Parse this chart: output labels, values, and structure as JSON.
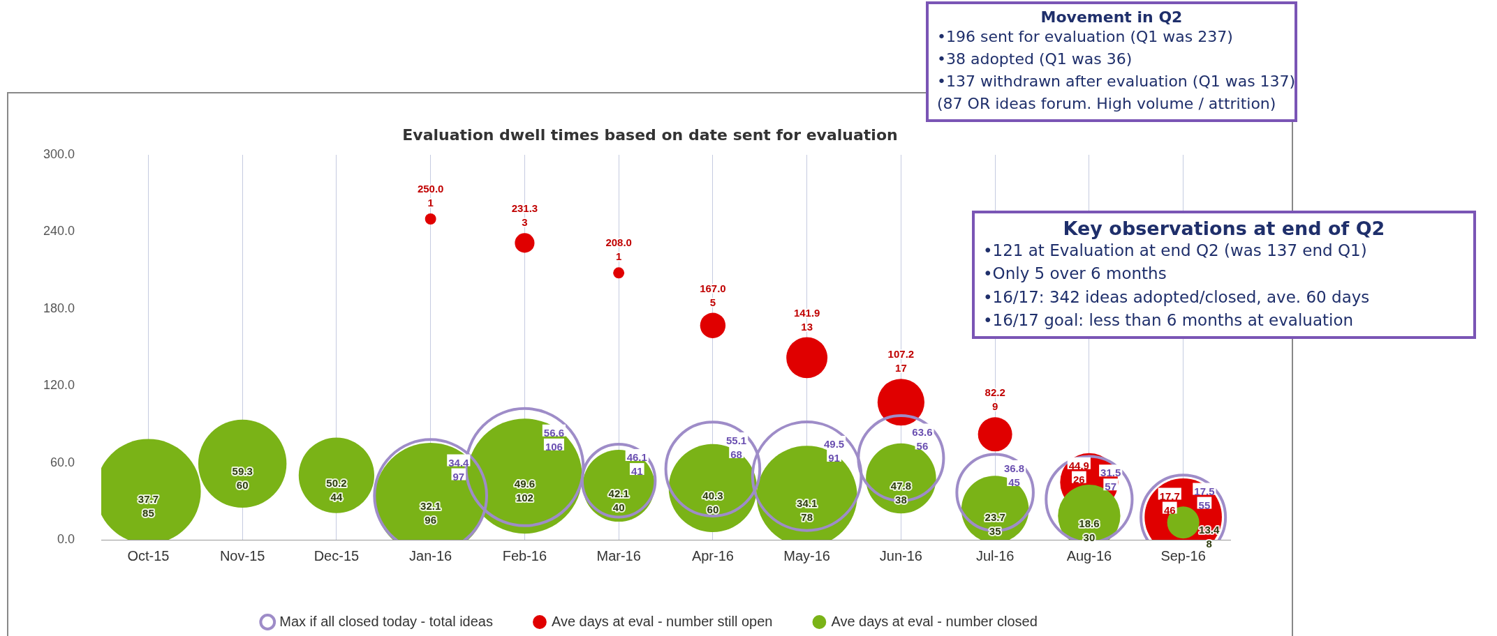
{
  "chart_data": {
    "type": "bubble",
    "title": "Evaluation dwell times based on date sent for evaluation",
    "categories": [
      "Oct-15",
      "Nov-15",
      "Dec-15",
      "Jan-16",
      "Feb-16",
      "Mar-16",
      "Apr-16",
      "May-16",
      "Jun-16",
      "Jul-16",
      "Aug-16",
      "Sep-16"
    ],
    "series": [
      {
        "name": "Max if all closed today - total ideas",
        "color": "#9e8cc8",
        "values": [
          null,
          null,
          null,
          34.4,
          56.6,
          46.1,
          55.1,
          49.5,
          63.6,
          36.8,
          31.5,
          17.5
        ],
        "sizes": [
          null,
          null,
          null,
          0.915,
          1,
          0.387,
          0.642,
          0.858,
          0.528,
          0.425,
          0.538,
          0.519
        ]
      },
      {
        "name": "Ave days at eval - number still open",
        "color": "#e00000",
        "values": [
          null,
          null,
          null,
          250.0,
          231.3,
          208.0,
          167.0,
          141.9,
          107.2,
          82.2,
          44.9,
          17.7
        ],
        "sizes": [
          null,
          null,
          null,
          0.009,
          0.028,
          0.009,
          0.047,
          0.123,
          0.16,
          0.085,
          0.245,
          0.434
        ],
        "value_labels": [
          null,
          null,
          null,
          "250.0",
          "231.3",
          "208.0",
          "167.0",
          "141.9",
          "107.2",
          "82.2",
          "44.9",
          "17.7"
        ]
      },
      {
        "name": "Ave days at eval - number closed",
        "color": "#7ab317",
        "values": [
          37.7,
          59.3,
          50.2,
          32.1,
          49.6,
          42.1,
          40.3,
          34.1,
          47.8,
          23.7,
          18.6,
          13.4
        ],
        "sizes": [
          0.802,
          0.566,
          0.415,
          0.906,
          0.962,
          0.377,
          0.566,
          0.736,
          0.358,
          0.33,
          0.283,
          0.075
        ]
      }
    ],
    "ylim": [
      0,
      300
    ],
    "yticks": [
      {
        "value": 0,
        "label": "0.0"
      },
      {
        "value": 60,
        "label": "60.0"
      },
      {
        "value": 120,
        "label": "120.0"
      },
      {
        "value": 180,
        "label": "180.0"
      },
      {
        "value": 240,
        "label": "240.0"
      },
      {
        "value": 300,
        "label": "300.0"
      }
    ],
    "grid": "x",
    "legend": "bottom",
    "data_labels": true,
    "annotations": [
      "Movement in Q2\n•196 sent for evaluation (Q1 was 237)\n•38 adopted (Q1 was 36)\n•137 withdrawn after evaluation (Q1 was 137)\n(87 OR ideas forum. High volume / attrition)",
      "Key observations at end of Q2\n•121 at Evaluation at end Q2 (was 137 end Q1)\n•Only 5 over 6 months\n•16/17: 342 ideas adopted/closed, ave. 60 days\n•16/17 goal: less than 6 months at evaluation",
      {
        "text": "97",
        "x": "Jan-16",
        "y": 34.4
      },
      {
        "text": "106",
        "x": "Feb-16",
        "y": 56.6
      },
      {
        "text": "41",
        "x": "Mar-16",
        "y": 46.1
      },
      {
        "text": "68",
        "x": "Apr-16",
        "y": 55.1
      },
      {
        "text": "91",
        "x": "May-16",
        "y": 49.5
      },
      {
        "text": "56",
        "x": "Jun-16",
        "y": 63.6
      },
      {
        "text": "45",
        "x": "Jul-16",
        "y": 36.8
      },
      {
        "text": "57",
        "x": "Aug-16",
        "y": 31.5
      },
      {
        "text": "55",
        "x": "Sep-16",
        "y": 17.5
      },
      {
        "text": "1",
        "x": "Jan-16",
        "y": 250.0
      },
      {
        "text": "3",
        "x": "Feb-16",
        "y": 231.3
      },
      {
        "text": "1",
        "x": "Mar-16",
        "y": 208.0
      },
      {
        "text": "5",
        "x": "Apr-16",
        "y": 167.0
      },
      {
        "text": "13",
        "x": "May-16",
        "y": 141.9
      },
      {
        "text": "17",
        "x": "Jun-16",
        "y": 107.2
      },
      {
        "text": "9",
        "x": "Jul-16",
        "y": 82.2
      },
      {
        "text": "26",
        "x": "Aug-16",
        "y": 44.9
      },
      {
        "text": "46",
        "x": "Sep-16",
        "y": 17.7
      },
      {
        "text": "85",
        "x": "Oct-15",
        "y": 37.7
      },
      {
        "text": "60",
        "x": "Nov-15",
        "y": 59.3
      },
      {
        "text": "44",
        "x": "Dec-15",
        "y": 50.2
      },
      {
        "text": "96",
        "x": "Jan-16",
        "y": 32.1
      },
      {
        "text": "102",
        "x": "Feb-16",
        "y": 49.6
      },
      {
        "text": "40",
        "x": "Mar-16",
        "y": 42.1
      },
      {
        "text": "60",
        "x": "Apr-16",
        "y": 40.3
      },
      {
        "text": "78",
        "x": "May-16",
        "y": 34.1
      },
      {
        "text": "38",
        "x": "Jun-16",
        "y": 47.8
      },
      {
        "text": "35",
        "x": "Jul-16",
        "y": 23.7
      },
      {
        "text": "30",
        "x": "Aug-16",
        "y": 18.6
      },
      {
        "text": "8",
        "x": "Sep-16",
        "y": 13.4
      }
    ]
  }
}
